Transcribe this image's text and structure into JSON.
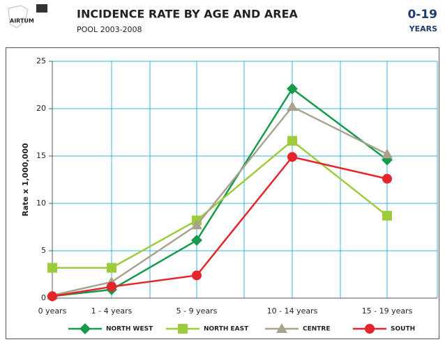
{
  "header": {
    "logo": "AIRTUM",
    "title": "INCIDENCE RATE BY AGE AND AREA",
    "subtitle": "POOL 2003-2008",
    "badge_top": "0-19",
    "badge_bottom": "YEARS"
  },
  "chart_data": {
    "type": "line",
    "ylabel": "Rate x 1,000,000",
    "categories": [
      "0 years",
      "1 - 4 years",
      "5 - 9 years",
      "10 - 14 years",
      "15 - 19 years"
    ],
    "series": [
      {
        "name": "NORTH WEST",
        "color": "#179a4b",
        "marker": "diamond",
        "values": [
          0.2,
          0.9,
          6.1,
          22.1,
          14.6
        ]
      },
      {
        "name": "NORTH EAST",
        "color": "#9dcb3b",
        "marker": "square",
        "values": [
          3.2,
          3.2,
          8.2,
          16.6,
          8.7
        ]
      },
      {
        "name": "CENTRE",
        "color": "#a8a28e",
        "marker": "triangle",
        "values": [
          0.3,
          1.7,
          7.7,
          20.2,
          15.2
        ]
      },
      {
        "name": "SOUTH",
        "color": "#e2262b",
        "marker": "circle",
        "values": [
          0.2,
          1.2,
          2.4,
          14.9,
          12.6
        ]
      }
    ],
    "ylim": [
      0,
      25
    ],
    "yticks": [
      0,
      5,
      10,
      15,
      20,
      25
    ],
    "grid": true,
    "legend": "bottom"
  }
}
